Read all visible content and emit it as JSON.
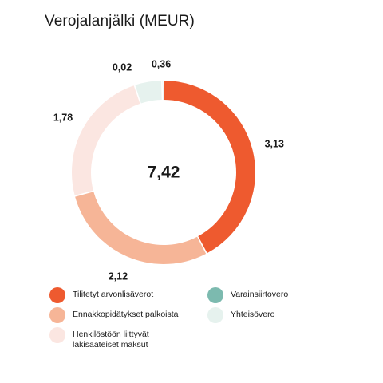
{
  "chart_data": {
    "type": "pie",
    "title": "Verojalanjälki (MEUR)",
    "total_label": "7,42",
    "categories": [
      "Tilitetyt arvonlisäverot",
      "Ennakkopidätykset palkoista",
      "Henkilöstöön liittyvät lakisääteiset maksut",
      "Varainsiirtovero",
      "Yhteisövero"
    ],
    "values": [
      3.13,
      2.12,
      1.78,
      0.02,
      0.36
    ],
    "value_labels": [
      "3,13",
      "2,12",
      "1,78",
      "0,02",
      "0,36"
    ],
    "colors": [
      "#EE5A2F",
      "#F6B597",
      "#FBE6E1",
      "#7CBAAF",
      "#E6F2EE"
    ],
    "segment_order": [
      "Varainsiirtovero",
      "Tilitetyt arvonlisäverot",
      "Ennakkopidätykset palkoista",
      "Henkilöstöön liittyvät lakisääteiset maksut",
      "Yhteisövero"
    ],
    "legend": [
      {
        "label": "Tilitetyt arvonlisäverot",
        "color": "#EE5A2F"
      },
      {
        "label": "Ennakkopidätykset palkoista",
        "color": "#F6B597"
      },
      {
        "label": "Henkilöstöön liittyvät\nlakisääteiset maksut",
        "color": "#FBE6E1"
      },
      {
        "label": "Varainsiirtovero",
        "color": "#7CBAAF"
      },
      {
        "label": "Yhteisövero",
        "color": "#E6F2EE"
      }
    ],
    "legend_placement": "bottom",
    "grid": false
  }
}
